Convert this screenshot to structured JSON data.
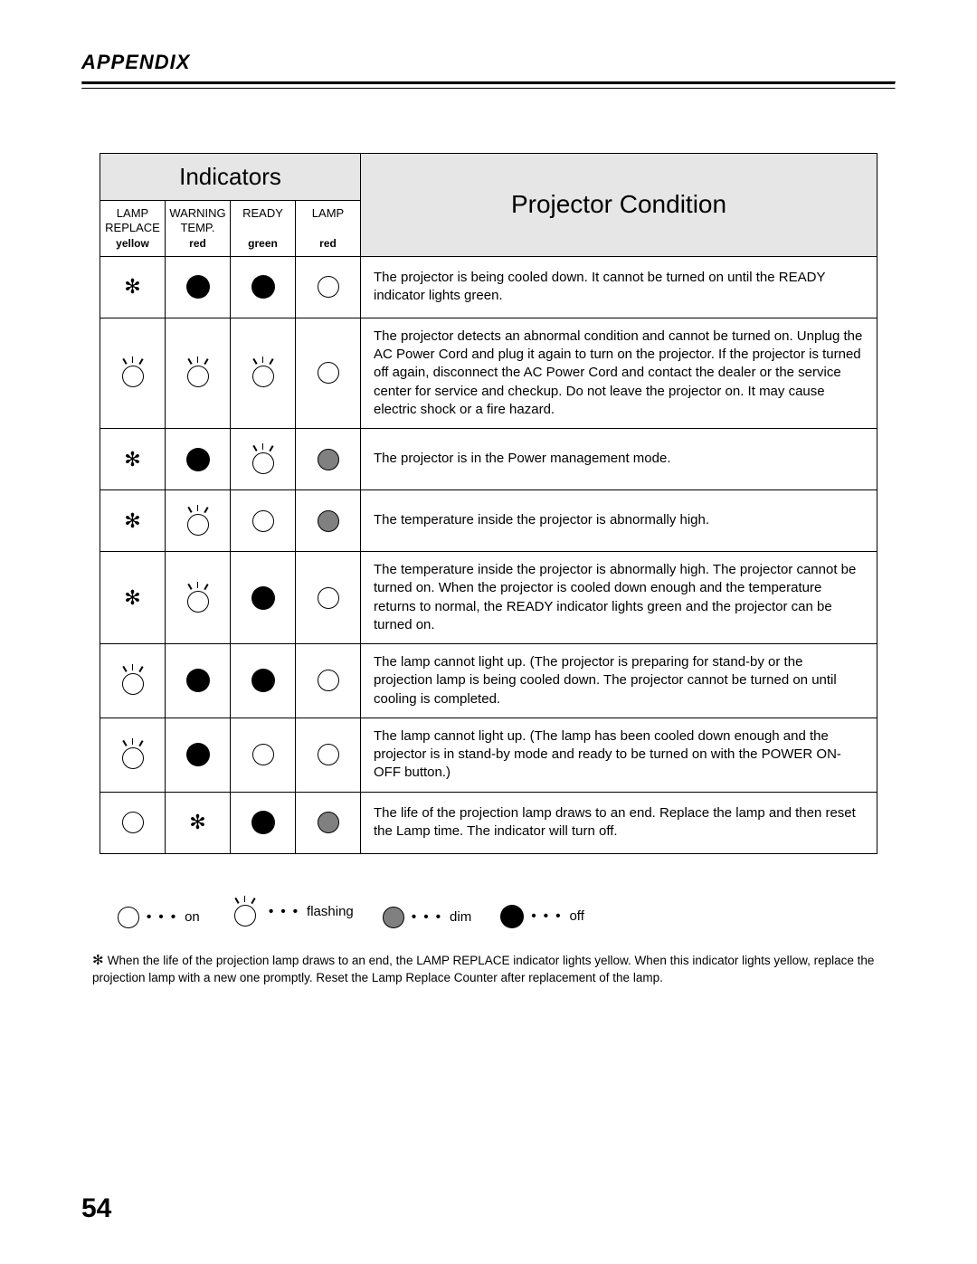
{
  "appendix": "APPENDIX",
  "headers": {
    "indicators": "Indicators",
    "condition": "Projector Condition",
    "cols": [
      {
        "line1": "LAMP",
        "line2": "REPLACE",
        "color": "yellow"
      },
      {
        "line1": "WARNING",
        "line2": "TEMP.",
        "color": "red"
      },
      {
        "line1": "READY",
        "line2": "",
        "color": "green"
      },
      {
        "line1": "LAMP",
        "line2": "",
        "color": "red"
      }
    ]
  },
  "rows": [
    {
      "icons": [
        "star",
        "off",
        "off",
        "on"
      ],
      "desc": "The projector is being cooled down. It cannot be turned on until the READY indicator lights green."
    },
    {
      "icons": [
        "flashing",
        "flashing",
        "flashing",
        "on"
      ],
      "desc": "The projector detects an abnormal condition and cannot be turned on.  Unplug the AC Power Cord and plug it again to turn on the projector.  If the projector is turned off again, disconnect the AC Power Cord and contact the dealer or the service center for service and checkup.  Do not leave the projector on.  It may cause electric shock or a fire hazard."
    },
    {
      "icons": [
        "star",
        "off",
        "flashing",
        "dim"
      ],
      "desc": "The projector is in the Power management mode."
    },
    {
      "icons": [
        "star",
        "flashing",
        "on",
        "dim"
      ],
      "desc": "The temperature inside the projector is abnormally high."
    },
    {
      "icons": [
        "star",
        "flashing",
        "off",
        "on"
      ],
      "desc": "The temperature inside the projector is abnormally high. The projector cannot be turned on. When the projector is cooled down enough and the temperature returns to normal, the READY indicator lights green and the projector can be turned on."
    },
    {
      "icons": [
        "flashing",
        "off",
        "off",
        "on"
      ],
      "desc": "The lamp cannot light up. (The projector is preparing for stand-by or the projection lamp is being cooled down. The projector cannot be turned on until cooling is completed."
    },
    {
      "icons": [
        "flashing",
        "off",
        "on",
        "on"
      ],
      "desc": "The lamp cannot light up. (The lamp has been cooled down enough and the projector is in stand-by mode and ready to be turned on with the POWER ON-OFF button.)"
    },
    {
      "icons": [
        "on",
        "star",
        "off",
        "dim"
      ],
      "desc": "The life of the projection lamp draws to an end.\nReplace the lamp and then reset the Lamp time. The indicator will turn off."
    }
  ],
  "legend": {
    "on": "on",
    "flashing": "flashing",
    "dim": "dim",
    "off": "off",
    "dots": "• • •"
  },
  "footnote": "When the life of the projection lamp draws to an end, the LAMP REPLACE indicator lights yellow.  When this indicator lights yellow, replace the projection lamp with a new one promptly.  Reset the Lamp Replace Counter after replacement of the lamp.",
  "pageNumber": "54"
}
